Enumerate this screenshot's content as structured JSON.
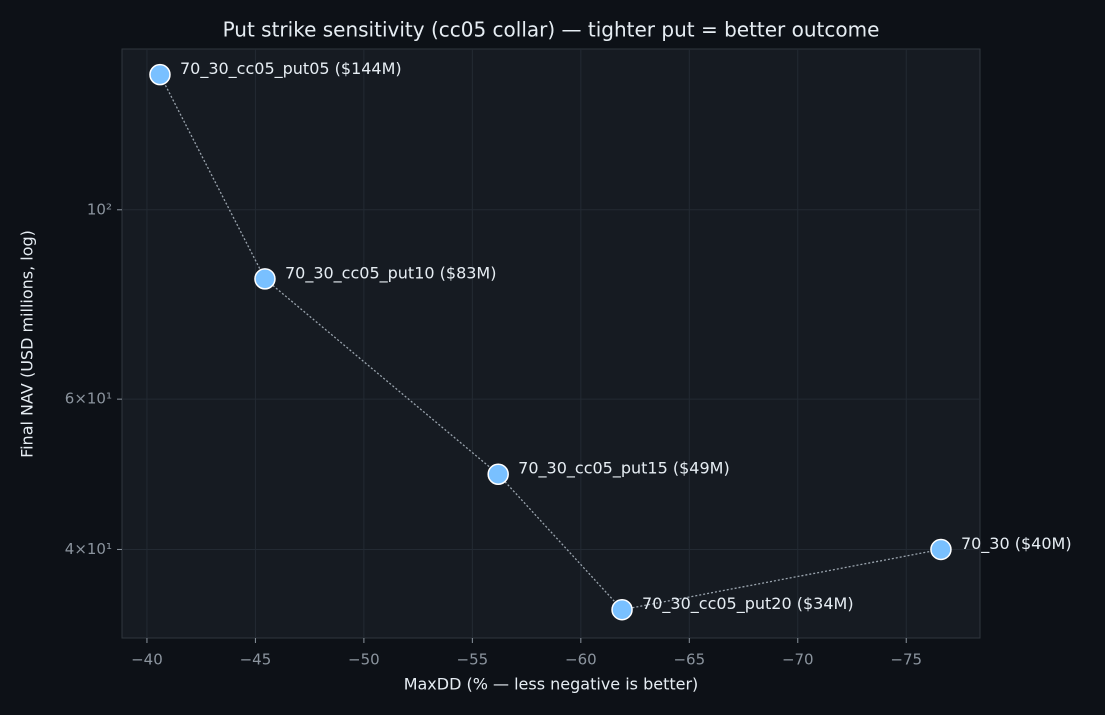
{
  "chart_data": {
    "type": "scatter",
    "title": "Put strike sensitivity (cc05 collar) — tighter put = better outcome",
    "x_label": "MaxDD (% — less negative is better)",
    "y_label": "Final NAV (USD millions, log)",
    "x": [
      -40.6,
      -45.44,
      -56.19,
      -61.9,
      -76.6
    ],
    "values": [
      144,
      83,
      49,
      34,
      40
    ],
    "point_labels": [
      "70_30_cc05_put05 ($144M)",
      "70_30_cc05_put10 ($83M)",
      "70_30_cc05_put15 ($49M)",
      "70_30_cc05_put20 ($34M)",
      "70_30 ($40M)"
    ],
    "color": "#79c0ff",
    "line_color": "#9aa4ae",
    "xlim": [
      -38.85,
      -78.4
    ],
    "ylim": [
      31.5,
      154.3
    ],
    "y_log": true,
    "xticks": [
      {
        "value": -40,
        "label": "−40"
      },
      {
        "value": -45,
        "label": "−45"
      },
      {
        "value": -50,
        "label": "−50"
      },
      {
        "value": -55,
        "label": "−55"
      },
      {
        "value": -60,
        "label": "−60"
      },
      {
        "value": -65,
        "label": "−65"
      },
      {
        "value": -70,
        "label": "−70"
      },
      {
        "value": -75,
        "label": "−75"
      }
    ],
    "yticks": [
      {
        "value": 100,
        "label": "10²"
      },
      {
        "value": 60,
        "label": "6×10¹"
      },
      {
        "value": 40,
        "label": "4×10¹"
      }
    ],
    "grid": true
  }
}
